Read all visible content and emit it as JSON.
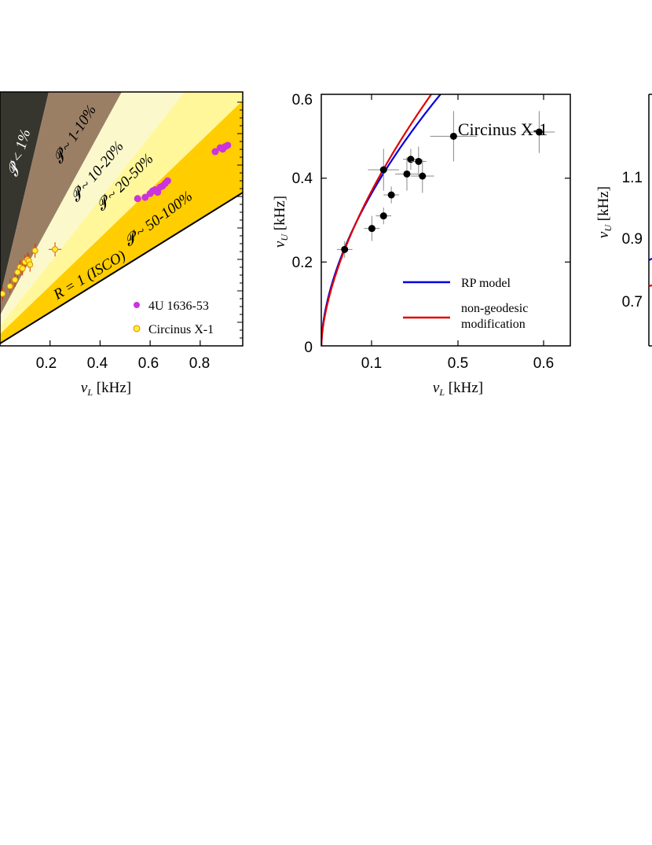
{
  "chart_data": [
    {
      "type": "scatter",
      "xlabel_symbol": "ν",
      "xlabel_sub": "L",
      "xlabel_unit": " [kHz]",
      "x_ticks": [
        "0.2",
        "0.4",
        "0.6",
        "0.8"
      ],
      "xlim": [
        0.0,
        0.97
      ],
      "ylim": [
        0.0,
        1.0
      ],
      "zones": [
        {
          "label": "𝓟 < 1%",
          "color": "#36362f",
          "text_color": "#ffffff"
        },
        {
          "label": "𝓟 ~ 1-10%",
          "color": "#9b7f65",
          "text_color": "#000000"
        },
        {
          "label": "𝓟 ~ 10-20%",
          "color": "#fbf8cc",
          "text_color": "#000000"
        },
        {
          "label": "𝓟 ~ 20-50%",
          "color": "#fff79a",
          "text_color": "#000000"
        },
        {
          "label": "𝓟 ~ 50-100%",
          "color": "#ffcd00",
          "text_color": "#000000"
        }
      ],
      "isco_label": "R = 1 (ISCO)",
      "series": [
        {
          "name": "4U 1636-53",
          "color": "#cc33dd",
          "points": [
            [
              0.55,
              0.58
            ],
            [
              0.58,
              0.585
            ],
            [
              0.6,
              0.6
            ],
            [
              0.61,
              0.61
            ],
            [
              0.62,
              0.615
            ],
            [
              0.63,
              0.605
            ],
            [
              0.64,
              0.625
            ],
            [
              0.65,
              0.63
            ],
            [
              0.66,
              0.64
            ],
            [
              0.67,
              0.65
            ],
            [
              0.86,
              0.765
            ],
            [
              0.88,
              0.78
            ],
            [
              0.89,
              0.775
            ],
            [
              0.9,
              0.785
            ],
            [
              0.91,
              0.79
            ]
          ]
        },
        {
          "name": "Circinus X-1",
          "color": "#ffee33",
          "points": [
            [
              0.01,
              0.205
            ],
            [
              0.04,
              0.235
            ],
            [
              0.06,
              0.26
            ],
            [
              0.07,
              0.29
            ],
            [
              0.08,
              0.31
            ],
            [
              0.09,
              0.305
            ],
            [
              0.1,
              0.33
            ],
            [
              0.11,
              0.34
            ],
            [
              0.115,
              0.335
            ],
            [
              0.12,
              0.32
            ],
            [
              0.14,
              0.375
            ],
            [
              0.22,
              0.38
            ]
          ]
        }
      ]
    },
    {
      "type": "scatter",
      "title": "Circinus X-1",
      "xlabel_symbol": "ν",
      "xlabel_sub": "L",
      "xlabel_unit": " [kHz]",
      "ylabel_symbol": "ν",
      "ylabel_sub": "U",
      "ylabel_unit": " [kHz]",
      "x_ticks": [
        "0.1",
        "0.5",
        "0.6"
      ],
      "y_ticks": [
        "0",
        "0.2",
        "0.4",
        "0.6"
      ],
      "ylim": [
        0,
        0.6
      ],
      "points": [
        {
          "x": 0.05,
          "y": 0.23,
          "xerr": 0.01,
          "yerr": 0.02
        },
        {
          "x": 0.085,
          "y": 0.28,
          "xerr": 0.01,
          "yerr": 0.03
        },
        {
          "x": 0.1,
          "y": 0.31,
          "xerr": 0.01,
          "yerr": 0.02
        },
        {
          "x": 0.1,
          "y": 0.42,
          "xerr": 0.02,
          "yerr": 0.05
        },
        {
          "x": 0.11,
          "y": 0.36,
          "xerr": 0.01,
          "yerr": 0.02
        },
        {
          "x": 0.13,
          "y": 0.41,
          "xerr": 0.015,
          "yerr": 0.04
        },
        {
          "x": 0.135,
          "y": 0.445,
          "xerr": 0.01,
          "yerr": 0.025
        },
        {
          "x": 0.145,
          "y": 0.44,
          "xerr": 0.01,
          "yerr": 0.035
        },
        {
          "x": 0.15,
          "y": 0.405,
          "xerr": 0.015,
          "yerr": 0.04
        },
        {
          "x": 0.19,
          "y": 0.5,
          "xerr": 0.03,
          "yerr": 0.06
        },
        {
          "x": 0.3,
          "y": 0.51,
          "xerr": 0.02,
          "yerr": 0.05
        }
      ],
      "series": [
        {
          "name": "RP model",
          "color": "#0000e0"
        },
        {
          "name": "non-geodesic modification",
          "color": "#e00000"
        }
      ],
      "legend_lines": [
        "RP model",
        "non-geodesic",
        "modification"
      ]
    },
    {
      "type": "line",
      "ylabel_symbol": "ν",
      "ylabel_sub": "U",
      "ylabel_unit": " [kHz]",
      "y_ticks": [
        "0.7",
        "0.9",
        "1.1"
      ],
      "series_colors": [
        "#0000e0",
        "#e00000"
      ]
    }
  ]
}
